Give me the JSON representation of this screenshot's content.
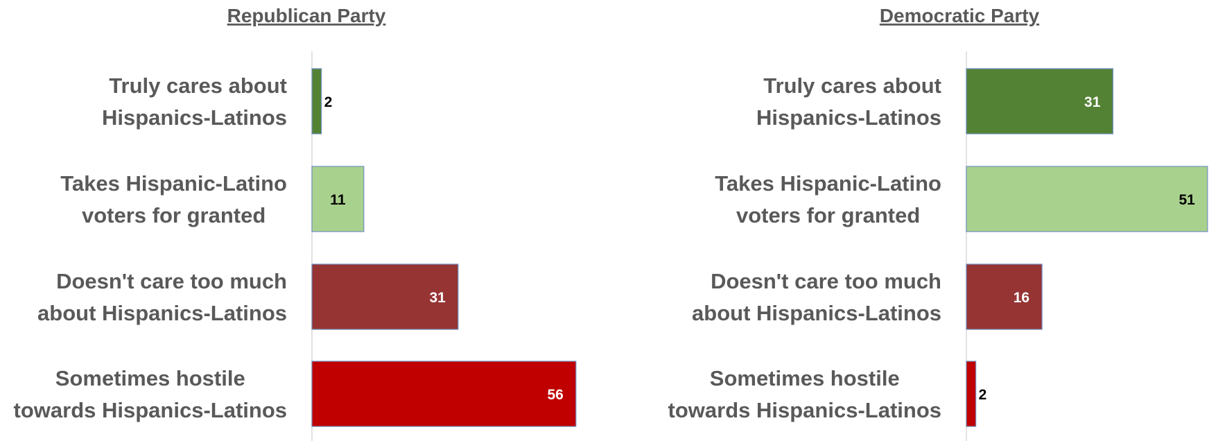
{
  "chart_data": [
    {
      "type": "bar",
      "orientation": "horizontal",
      "title": "Republican Party",
      "categories": [
        [
          "Truly cares about",
          "Hispanics-Latinos"
        ],
        [
          "Takes Hispanic-Latino",
          "voters for granted"
        ],
        [
          "Doesn't care too much",
          "about Hispanics-Latinos"
        ],
        [
          "Sometimes hostile",
          "towards Hispanics-Latinos"
        ]
      ],
      "values": [
        2,
        11,
        31,
        56
      ],
      "colors": [
        "#548235",
        "#a9d18e",
        "#963434",
        "#c00000"
      ],
      "label_colors": [
        "#000000",
        "#000000",
        "#ffffff",
        "#ffffff"
      ],
      "xlim": [
        0,
        56
      ]
    },
    {
      "type": "bar",
      "orientation": "horizontal",
      "title": "Democratic Party",
      "categories": [
        [
          "Truly cares about",
          "Hispanics-Latinos"
        ],
        [
          "Takes Hispanic-Latino",
          "voters for granted"
        ],
        [
          "Doesn't care too much",
          "about Hispanics-Latinos"
        ],
        [
          "Sometimes hostile",
          "towards Hispanics-Latinos"
        ]
      ],
      "values": [
        31,
        51,
        16,
        2
      ],
      "colors": [
        "#548235",
        "#a9d18e",
        "#963434",
        "#c00000"
      ],
      "label_colors": [
        "#ffffff",
        "#000000",
        "#ffffff",
        "#000000"
      ],
      "xlim": [
        0,
        51
      ]
    }
  ]
}
